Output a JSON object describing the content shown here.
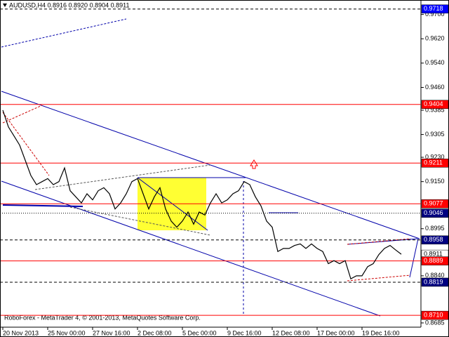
{
  "chart_data": {
    "type": "line",
    "title": "AUDUSD,H4  0.8916 0.8920 0.8904 0.8911",
    "footer": "RoboForex - MetaTrader 4, © 2001-2013, MetaQuotes Software Corp.",
    "x_labels": [
      "20 Nov 2013",
      "25 Nov 00:00",
      "27 Nov 16:00",
      "2 Dec 08:00",
      "5 Dec 00:00",
      "9 Dec 16:00",
      "12 Dec 08:00",
      "17 Dec 00:00",
      "19 Dec 16:00"
    ],
    "series": [
      {
        "name": "AUDUSD",
        "color": "#000000",
        "values": [
          0.9385,
          0.933,
          0.93,
          0.927,
          0.922,
          0.917,
          0.914,
          0.915,
          0.916,
          0.914,
          0.915,
          0.9195,
          0.912,
          0.91,
          0.908,
          0.911,
          0.909,
          0.912,
          0.913,
          0.911,
          0.906,
          0.908,
          0.911,
          0.915,
          0.916,
          0.911,
          0.906,
          0.91,
          0.913,
          0.906,
          0.902,
          0.9,
          0.902,
          0.905,
          0.901,
          0.905,
          0.904,
          0.908,
          0.911,
          0.908,
          0.909,
          0.911,
          0.912,
          0.915,
          0.914,
          0.91,
          0.907,
          0.902,
          0.9,
          0.892,
          0.893,
          0.893,
          0.894,
          0.8945,
          0.893,
          0.8945,
          0.893,
          0.892,
          0.888,
          0.889,
          0.888,
          0.889,
          0.883,
          0.884,
          0.884,
          0.887,
          0.888,
          0.891,
          0.893,
          0.894,
          0.8925,
          0.8911
        ]
      }
    ],
    "ylim": [
      0.8671,
      0.9743
    ],
    "yticks": [
      {
        "value": 0.97,
        "label": "0.9700"
      },
      {
        "value": 0.962,
        "label": "0.9620"
      },
      {
        "value": 0.954,
        "label": "0.9540"
      },
      {
        "value": 0.946,
        "label": "0.9460"
      },
      {
        "value": 0.9385,
        "label": "0.9385"
      },
      {
        "value": 0.9305,
        "label": "0.9305"
      },
      {
        "value": 0.923,
        "label": "0.9230"
      },
      {
        "value": 0.915,
        "label": "0.9150"
      },
      {
        "value": 0.8995,
        "label": "0.8995"
      },
      {
        "value": 0.884,
        "label": "0.8840"
      },
      {
        "value": 0.8685,
        "label": "0.8685"
      }
    ],
    "levels": [
      {
        "value": 0.9718,
        "label": "0.9718",
        "color": "#0000ff",
        "style": "dashed"
      },
      {
        "value": 0.9404,
        "label": "0.9404",
        "color": "#ff0000",
        "style": "solid"
      },
      {
        "value": 0.9211,
        "label": "0.9211",
        "color": "#ff0000",
        "style": "solid"
      },
      {
        "value": 0.9077,
        "label": "0.9077",
        "color": "#ff0000",
        "style": "solid"
      },
      {
        "value": 0.9046,
        "label": "0.9046",
        "color": "#000080",
        "style": "dotted"
      },
      {
        "value": 0.8958,
        "label": "0.8958",
        "color": "#000080",
        "style": "dashed"
      },
      {
        "value": 0.8911,
        "label": "0.8911",
        "color": "#ffffff",
        "style": "none"
      },
      {
        "value": 0.8889,
        "label": "0.8889",
        "color": "#ff0000",
        "style": "solid"
      },
      {
        "value": 0.8819,
        "label": "0.8819",
        "color": "#000080",
        "style": "dashed"
      },
      {
        "value": 0.871,
        "label": "0.8710",
        "color": "#ff0000",
        "style": "solid"
      }
    ]
  }
}
